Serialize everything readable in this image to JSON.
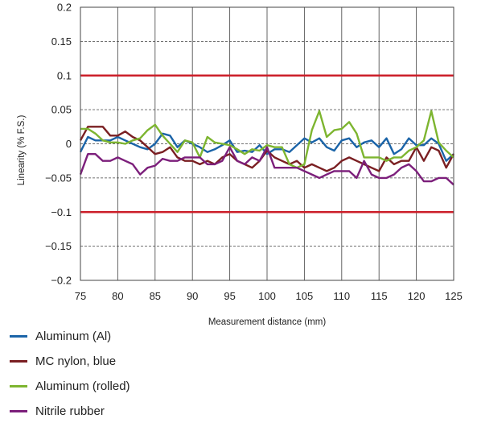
{
  "chart_data": {
    "type": "line",
    "title": "",
    "xlabel": "Measurement distance (mm)",
    "ylabel": "Linearity (% F.S.)",
    "xlim": [
      75,
      125
    ],
    "ylim": [
      -0.2,
      0.2
    ],
    "x_ticks": [
      75,
      80,
      85,
      90,
      95,
      100,
      105,
      110,
      115,
      120,
      125
    ],
    "y_ticks": [
      0.2,
      0.15,
      0.1,
      0.05,
      0,
      -0.05,
      -0.1,
      -0.15,
      -0.2
    ],
    "y_tick_labels": [
      "0.2",
      "0.15",
      "0.1",
      "0.05",
      "0",
      "−0.05",
      "−0.1",
      "−0.15",
      "−0.2"
    ],
    "limit_lines": [
      0.1,
      -0.1
    ],
    "limit_color": "#cc1f2a",
    "grid": true,
    "legend_position": "bottom-left",
    "x": [
      75,
      76,
      77,
      78,
      79,
      80,
      81,
      82,
      83,
      84,
      85,
      86,
      87,
      88,
      89,
      90,
      91,
      92,
      93,
      94,
      95,
      96,
      97,
      98,
      99,
      100,
      101,
      102,
      103,
      104,
      105,
      106,
      107,
      108,
      109,
      110,
      111,
      112,
      113,
      114,
      115,
      116,
      117,
      118,
      119,
      120,
      121,
      122,
      123,
      124,
      125
    ],
    "series": [
      {
        "name": "Aluminum (Al)",
        "color": "#1b64a8",
        "values": [
          -0.012,
          0.01,
          0.005,
          0.005,
          0.005,
          0.01,
          0.005,
          0.0,
          -0.005,
          -0.008,
          0.0,
          0.015,
          0.012,
          -0.005,
          0.005,
          0.0,
          -0.005,
          -0.012,
          -0.008,
          -0.002,
          0.005,
          -0.012,
          -0.01,
          -0.012,
          -0.002,
          -0.015,
          -0.008,
          -0.008,
          -0.012,
          -0.002,
          0.008,
          0.002,
          0.008,
          -0.005,
          -0.01,
          0.005,
          0.008,
          -0.005,
          0.002,
          0.005,
          -0.005,
          0.008,
          -0.015,
          -0.008,
          0.008,
          -0.002,
          -0.002,
          0.008,
          0.0,
          -0.025,
          -0.015
        ]
      },
      {
        "name": "MC nylon, blue",
        "color": "#7a1f22",
        "values": [
          0.005,
          0.025,
          0.025,
          0.025,
          0.012,
          0.012,
          0.018,
          0.01,
          0.005,
          -0.005,
          -0.015,
          -0.012,
          -0.005,
          -0.02,
          -0.025,
          -0.025,
          -0.03,
          -0.025,
          -0.03,
          -0.02,
          -0.015,
          -0.025,
          -0.03,
          -0.035,
          -0.025,
          -0.01,
          -0.02,
          -0.025,
          -0.03,
          -0.025,
          -0.035,
          -0.03,
          -0.035,
          -0.04,
          -0.035,
          -0.025,
          -0.02,
          -0.025,
          -0.03,
          -0.035,
          -0.04,
          -0.02,
          -0.03,
          -0.025,
          -0.025,
          -0.005,
          -0.025,
          -0.005,
          -0.01,
          -0.035,
          -0.015
        ]
      },
      {
        "name": "Aluminum (rolled)",
        "color": "#7db530",
        "values": [
          0.022,
          0.022,
          0.015,
          0.005,
          0.002,
          0.002,
          0.0,
          0.005,
          0.008,
          0.02,
          0.028,
          0.012,
          0.0,
          -0.012,
          0.005,
          0.002,
          -0.02,
          0.01,
          0.002,
          0.0,
          -0.002,
          -0.008,
          -0.015,
          -0.008,
          -0.01,
          -0.002,
          -0.005,
          -0.005,
          -0.03,
          -0.035,
          -0.03,
          0.02,
          0.048,
          0.01,
          0.02,
          0.022,
          0.032,
          0.015,
          -0.02,
          -0.02,
          -0.02,
          -0.025,
          -0.02,
          -0.02,
          -0.01,
          -0.005,
          0.005,
          0.048,
          0.002,
          -0.01,
          -0.02
        ]
      },
      {
        "name": "Nitrile rubber",
        "color": "#7c1f7b",
        "values": [
          -0.045,
          -0.015,
          -0.015,
          -0.025,
          -0.025,
          -0.02,
          -0.025,
          -0.03,
          -0.045,
          -0.035,
          -0.032,
          -0.022,
          -0.025,
          -0.025,
          -0.02,
          -0.02,
          -0.02,
          -0.03,
          -0.03,
          -0.025,
          -0.005,
          -0.025,
          -0.03,
          -0.02,
          -0.025,
          -0.005,
          -0.035,
          -0.035,
          -0.035,
          -0.035,
          -0.04,
          -0.045,
          -0.05,
          -0.045,
          -0.04,
          -0.04,
          -0.04,
          -0.05,
          -0.025,
          -0.045,
          -0.05,
          -0.05,
          -0.045,
          -0.035,
          -0.03,
          -0.04,
          -0.055,
          -0.055,
          -0.05,
          -0.05,
          -0.06
        ]
      }
    ]
  }
}
